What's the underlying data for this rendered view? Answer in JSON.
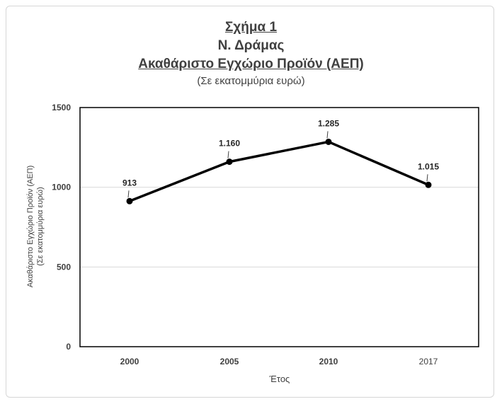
{
  "chart_data": {
    "type": "line",
    "title_lines": [
      "Σχήμα 1",
      "Ν. Δράμας",
      "Ακαθάριστο Εγχώριο Προϊόν (ΑΕΠ)"
    ],
    "subtitle": "(Σε εκατομμύρια ευρώ)",
    "categories": [
      "2000",
      "2005",
      "2010",
      "2017"
    ],
    "values": [
      913,
      1160,
      1285,
      1015
    ],
    "data_labels": [
      "913",
      "1.160",
      "1.285",
      "1.015"
    ],
    "ylabel_lines": [
      "Ακαθάριστο Εγχώριο Προϊόν (ΑΕΠ)",
      "(Σε εκατομμύρια ευρώ)"
    ],
    "xlabel": "Έτος",
    "ylim": [
      0,
      1500
    ],
    "yticks": [
      0,
      500,
      1000,
      1500
    ],
    "ytick_labels": [
      "0",
      "500",
      "1000",
      "1500"
    ],
    "grid": true,
    "line_color": "#000000",
    "grid_color": "#d9d9d9"
  }
}
